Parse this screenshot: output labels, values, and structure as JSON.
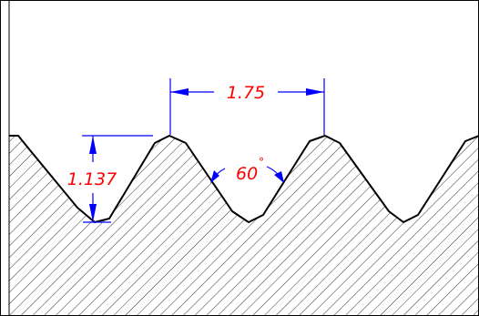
{
  "drawing": {
    "pitch_label": "1.75",
    "depth_label": "1.137",
    "angle_label": "60",
    "degree_symbol": "°"
  },
  "colors": {
    "outline": "#000000",
    "hatch": "#000000",
    "dimension_line": "#0000ff",
    "dimension_text": "#ff0000",
    "background": "#ffffff"
  }
}
